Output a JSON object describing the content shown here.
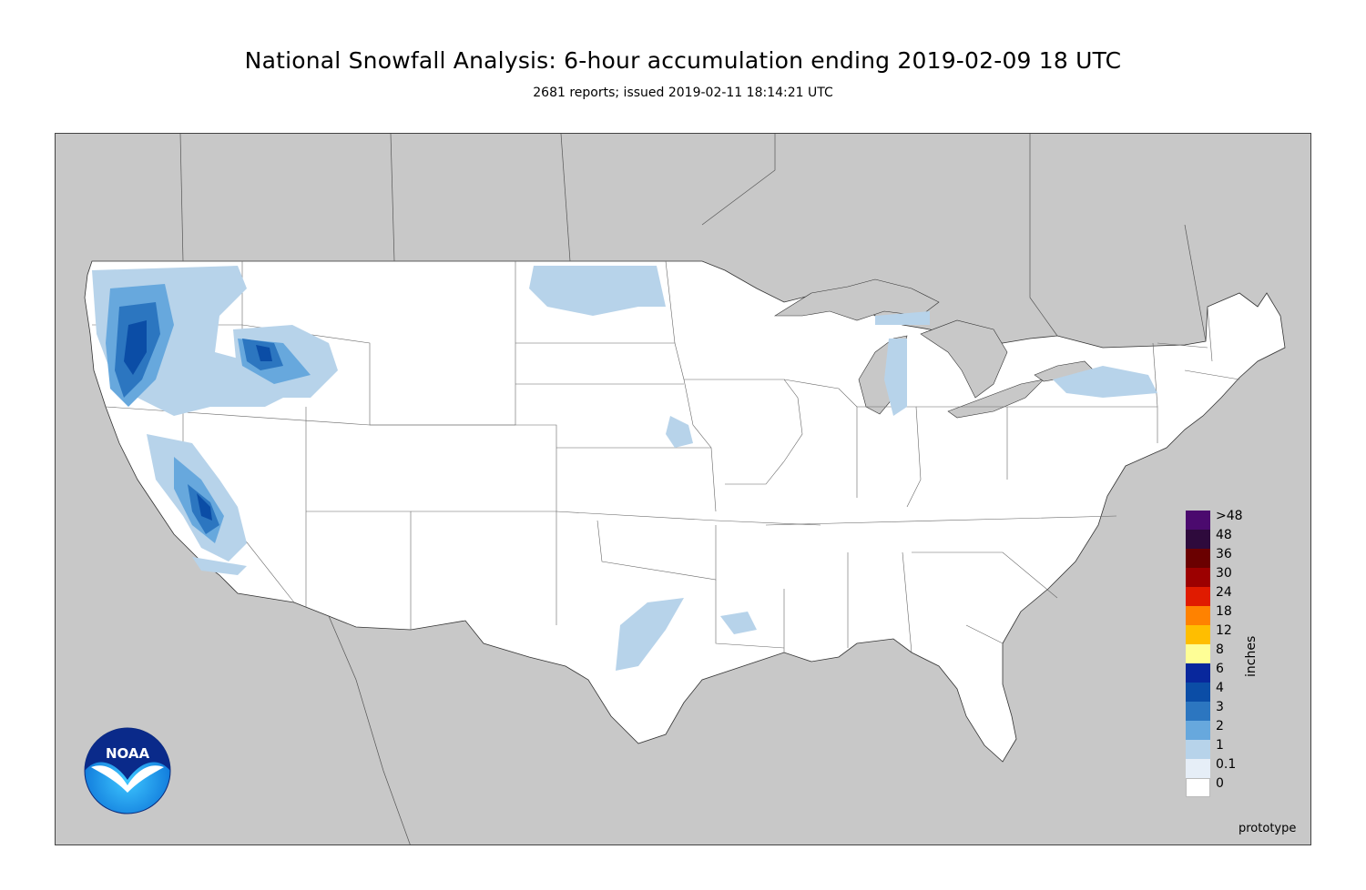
{
  "title": "National Snowfall Analysis: 6-hour accumulation ending 2019-02-09 18 UTC",
  "subtitle": "2681 reports; issued 2019-02-11 18:14:21 UTC",
  "legend": {
    "unit": "inches",
    "labels": [
      ">48",
      "48",
      "36",
      "30",
      "24",
      "18",
      "12",
      "8",
      "6",
      "4",
      "3",
      "2",
      "1",
      "0.1",
      "0"
    ],
    "colors": [
      "#4b0a6e",
      "#2e0a3c",
      "#6a0000",
      "#9c0000",
      "#e01b00",
      "#ff8200",
      "#ffbe00",
      "#fefe96",
      "#08279c",
      "#0b4da6",
      "#2c76c0",
      "#67a8dd",
      "#b7d3ea",
      "#e6eef7",
      "#ffffff"
    ]
  },
  "watermark": "prototype",
  "logo": {
    "text": "NOAA"
  },
  "colors": {
    "background_land": "#c8c8c8",
    "us_fill": "#ffffff",
    "boundary": "#555555"
  }
}
